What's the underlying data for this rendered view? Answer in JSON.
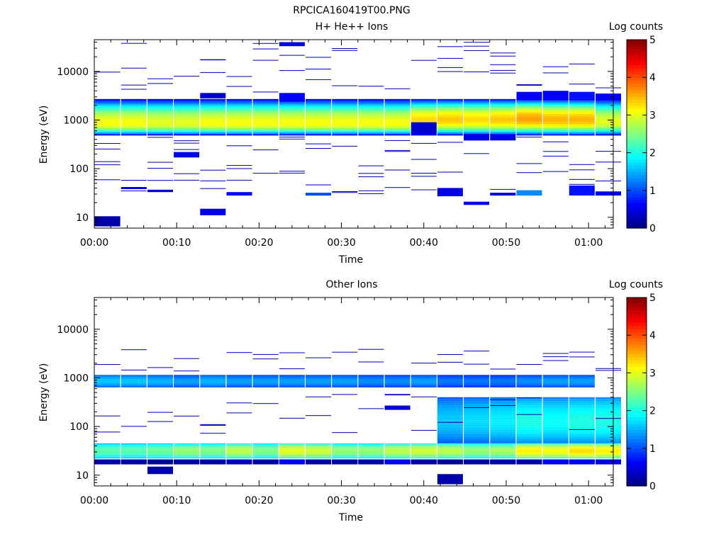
{
  "figure": {
    "title": "RPCICA160419T00.PNG"
  },
  "chart_data": [
    {
      "type": "heatmap",
      "title": "H+ He++ Ions",
      "xlabel": "Time",
      "ylabel": "Energy (eV)",
      "colorbar_label": "Log counts",
      "colorbar_ticks": [
        "0",
        "1",
        "2",
        "3",
        "4",
        "5"
      ],
      "clim": [
        0,
        5
      ],
      "colormap": "jet",
      "xticks": [
        "00:00",
        "00:10",
        "00:20",
        "00:30",
        "00:40",
        "00:50",
        "01:00"
      ],
      "yticks": [
        "10",
        "100",
        "1000",
        "10000"
      ],
      "xlim_minutes": [
        0,
        63
      ],
      "ylim_eV": [
        6,
        45000
      ],
      "yscale": "log",
      "time_bins_minutes": [
        1.6,
        4.8,
        8.0,
        11.2,
        14.4,
        17.6,
        20.8,
        24.0,
        27.2,
        30.4,
        33.6,
        36.8,
        40.0,
        43.2,
        46.4,
        49.6,
        52.8,
        56.0,
        59.2,
        62.4
      ],
      "core_band": {
        "low_eV": 480,
        "high_eV": 2700,
        "peak_log_counts": [
          3.1,
          3.1,
          3.0,
          3.0,
          3.1,
          3.1,
          3.1,
          3.1,
          3.1,
          3.1,
          3.1,
          3.1,
          3.3,
          3.4,
          3.3,
          3.4,
          3.6,
          3.5,
          3.5,
          3.0
        ],
        "peak_energy_eV": [
          850,
          850,
          850,
          850,
          850,
          850,
          850,
          850,
          850,
          850,
          850,
          850,
          1000,
          1000,
          1000,
          1000,
          1050,
          1000,
          1000,
          900
        ]
      },
      "patches": [
        {
          "t": 1.6,
          "e0": 6.5,
          "e1": 10.5,
          "v": 0.2
        },
        {
          "t": 14.4,
          "e0": 11,
          "e1": 15,
          "v": 0.5
        },
        {
          "t": 11.2,
          "e0": 170,
          "e1": 220,
          "v": 0.5
        },
        {
          "t": 17.6,
          "e0": 28,
          "e1": 33,
          "v": 0.6
        },
        {
          "t": 27.2,
          "e0": 28,
          "e1": 32,
          "v": 1.0
        },
        {
          "t": 43.2,
          "e0": 27,
          "e1": 40,
          "v": 0.5
        },
        {
          "t": 46.4,
          "e0": 18,
          "e1": 21,
          "v": 0.5
        },
        {
          "t": 49.6,
          "e0": 28,
          "e1": 32,
          "v": 0.4
        },
        {
          "t": 52.8,
          "e0": 28,
          "e1": 36,
          "v": 1.3
        },
        {
          "t": 59.2,
          "e0": 28,
          "e1": 45,
          "v": 0.7
        },
        {
          "t": 62.4,
          "e0": 28,
          "e1": 34,
          "v": 0.5
        },
        {
          "t": 8.0,
          "e0": 33,
          "e1": 37,
          "v": 0.4
        },
        {
          "t": 4.8,
          "e0": 38,
          "e1": 42,
          "v": 0.5
        },
        {
          "t": 40.0,
          "e0": 500,
          "e1": 900,
          "v": 0.4
        },
        {
          "t": 46.4,
          "e0": 380,
          "e1": 520,
          "v": 0.5
        },
        {
          "t": 49.6,
          "e0": 380,
          "e1": 500,
          "v": 0.5
        },
        {
          "t": 24.0,
          "e0": 2400,
          "e1": 3600,
          "v": 0.6
        },
        {
          "t": 14.4,
          "e0": 2800,
          "e1": 3600,
          "v": 0.4
        },
        {
          "t": 24.0,
          "e0": 33000,
          "e1": 40000,
          "v": 0.5
        },
        {
          "t": 52.8,
          "e0": 2600,
          "e1": 3800,
          "v": 0.6
        },
        {
          "t": 56.0,
          "e0": 2600,
          "e1": 4000,
          "v": 0.6
        },
        {
          "t": 59.2,
          "e0": 2600,
          "e1": 3800,
          "v": 0.7
        },
        {
          "t": 62.4,
          "e0": 2600,
          "e1": 3500,
          "v": 0.6
        }
      ]
    },
    {
      "type": "heatmap",
      "title": "Other Ions",
      "xlabel": "Time",
      "ylabel": "Energy (eV)",
      "colorbar_label": "Log counts",
      "colorbar_ticks": [
        "0",
        "1",
        "2",
        "3",
        "4",
        "5"
      ],
      "clim": [
        0,
        5
      ],
      "colormap": "jet",
      "xticks": [
        "00:00",
        "00:10",
        "00:20",
        "00:30",
        "00:40",
        "00:50",
        "01:00"
      ],
      "yticks": [
        "10",
        "100",
        "1000",
        "10000"
      ],
      "xlim_minutes": [
        0,
        63
      ],
      "ylim_eV": [
        6,
        45000
      ],
      "yscale": "log",
      "time_bins_minutes": [
        1.6,
        4.8,
        8.0,
        11.2,
        14.4,
        17.6,
        20.8,
        24.0,
        27.2,
        30.4,
        33.6,
        36.8,
        40.0,
        43.2,
        46.4,
        49.6,
        52.8,
        56.0,
        59.2,
        62.4
      ],
      "mid_band": {
        "low_eV": 640,
        "high_eV": 1150,
        "peak_log_counts": [
          1.6,
          1.6,
          1.5,
          1.4,
          1.5,
          1.4,
          1.4,
          1.4,
          1.4,
          1.4,
          1.3,
          1.3,
          1.4,
          1.2,
          1.2,
          1.2,
          1.3,
          1.4,
          1.4,
          0.0
        ]
      },
      "low_band": {
        "low_eV": 22,
        "high_eV": 45,
        "peak_log_counts": [
          2.3,
          2.3,
          2.4,
          2.6,
          2.5,
          2.8,
          2.5,
          3.0,
          2.9,
          2.6,
          2.6,
          2.8,
          2.9,
          2.8,
          2.6,
          2.7,
          3.2,
          3.1,
          3.3,
          3.2
        ]
      },
      "floor_band": {
        "low_eV": 17,
        "high_eV": 21,
        "peak_log_counts": [
          0.2,
          0.2,
          0.1,
          0.2,
          0.2,
          0.3,
          0.2,
          0.6,
          0.2,
          0.2,
          0.2,
          0.6,
          0.2,
          0.1,
          0.2,
          0.2,
          0.2,
          0.6,
          0.6,
          0.5
        ]
      },
      "upper_spread": {
        "start_min": 42,
        "low_eV": 45,
        "high_eV": 400,
        "peak_log_counts": [
          0,
          0,
          0,
          0,
          0,
          0,
          0,
          0,
          0,
          0,
          0,
          0,
          0,
          1.6,
          1.7,
          1.8,
          2.0,
          1.9,
          2.0,
          2.0
        ]
      },
      "patches": [
        {
          "t": 8.0,
          "e0": 10.5,
          "e1": 15,
          "v": 0.2
        },
        {
          "t": 43.2,
          "e0": 6.5,
          "e1": 10.5,
          "v": 0.2
        },
        {
          "t": 36.8,
          "e0": 220,
          "e1": 260,
          "v": 0.5
        }
      ]
    }
  ]
}
